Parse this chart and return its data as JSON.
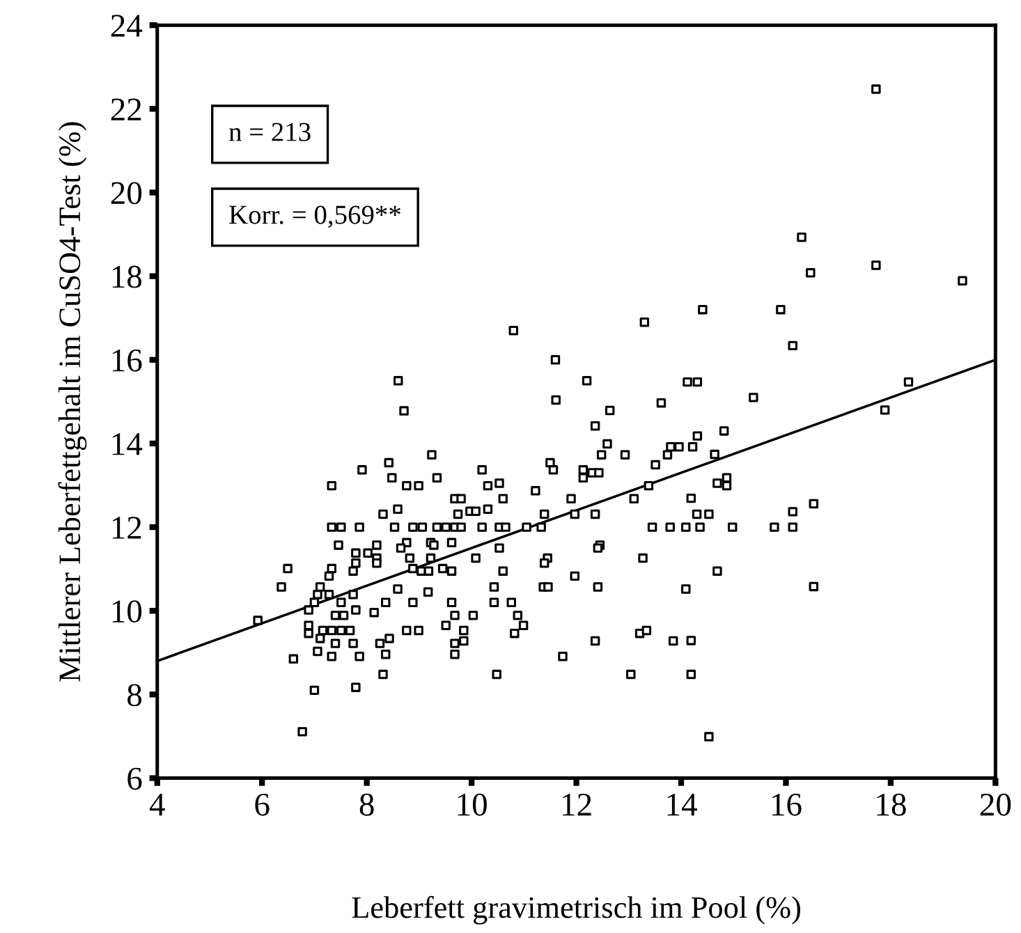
{
  "chart_data": {
    "type": "scatter",
    "xlabel": "Leberfett gravimetrisch im Pool (%)",
    "ylabel": "Mittlerer Leberfettgehalt im CuSO4-Test (%)",
    "annotations": [
      "n = 213",
      "Korr. = 0,569**"
    ],
    "xlim": [
      4,
      20
    ],
    "xticks": [
      4,
      6,
      8,
      10,
      12,
      14,
      16,
      18,
      20
    ],
    "ylim": [
      6,
      24
    ],
    "yticks": [
      6,
      8,
      10,
      12,
      14,
      16,
      18,
      20,
      22,
      24
    ],
    "grid": false,
    "legend": false,
    "series": [
      {
        "color": "#000000",
        "marker": "square",
        "x": [
          8.71,
          8.42,
          8.48,
          7.91,
          7.33,
          8.76,
          8.99,
          9.24,
          8.31,
          8.59,
          7.33,
          7.51,
          7.86,
          8.53,
          8.88,
          9.06,
          7.46,
          8.19,
          8.76,
          8.65,
          9.22,
          7.79,
          8.02,
          7.79,
          8.19,
          8.19,
          8.82,
          6.49,
          7.33,
          7.74,
          8.88,
          9.04,
          9.18,
          7.28,
          6.37,
          7.11,
          8.59,
          9.17,
          7.06,
          7.28,
          7.74,
          7.0,
          7.51,
          8.36,
          8.88,
          6.89,
          7.79,
          8.14,
          7.4,
          7.56,
          5.92,
          6.89,
          6.89,
          7.16,
          7.33,
          7.51,
          7.68,
          8.76,
          8.99,
          7.11,
          8.43,
          7.4,
          7.74,
          8.25,
          6.6,
          7.06,
          7.33,
          7.86,
          8.36,
          8.31,
          7.0,
          7.79,
          6.77,
          11.61,
          12.64,
          13.62,
          12.36,
          12.59,
          12.48,
          12.93,
          13.74,
          13.8,
          13.96,
          13.51,
          11.5,
          11.56,
          12.13,
          12.13,
          12.3,
          12.43,
          9.34,
          10.2,
          10.31,
          10.53,
          11.22,
          9.68,
          9.8,
          10.6,
          11.9,
          13.1,
          13.38,
          9.74,
          9.97,
          10.08,
          10.31,
          11.39,
          11.97,
          12.36,
          9.34,
          9.51,
          9.68,
          9.8,
          10.2,
          10.53,
          10.65,
          11.05,
          11.33,
          13.45,
          13.79,
          9.28,
          9.62,
          10.53,
          12.45,
          12.41,
          9.22,
          10.08,
          11.45,
          11.39,
          13.27,
          9.45,
          9.62,
          10.6,
          10.43,
          11.37,
          11.46,
          11.97,
          12.41,
          9.62,
          10.43,
          10.76,
          9.68,
          10.03,
          10.88,
          9.51,
          9.85,
          10.99,
          10.82,
          9.68,
          9.85,
          9.68,
          12.36,
          13.21,
          13.34,
          13.85,
          11.74,
          10.48,
          13.04,
          17.72,
          16.3,
          16.47,
          17.72,
          19.37,
          14.41,
          15.9,
          16.13,
          14.12,
          14.31,
          18.34,
          15.38,
          17.89,
          14.82,
          14.31,
          14.22,
          14.64,
          14.69,
          14.87,
          14.87,
          14.19,
          14.3,
          14.53,
          14.09,
          14.36,
          14.98,
          15.78,
          16.13,
          16.13,
          16.53,
          14.69,
          14.09,
          16.53,
          14.19,
          14.19,
          14.53,
          8.6,
          10.8,
          11.6,
          13.3,
          12.2
        ],
        "values": [
          14.78,
          13.54,
          13.18,
          13.37,
          12.99,
          12.99,
          12.99,
          13.73,
          12.31,
          12.43,
          12.0,
          12.0,
          12.0,
          12.0,
          12.0,
          12.0,
          11.57,
          11.57,
          11.63,
          11.5,
          11.63,
          11.38,
          11.38,
          11.14,
          11.26,
          11.14,
          11.26,
          11.01,
          11.01,
          10.95,
          11.01,
          10.95,
          10.95,
          10.83,
          10.57,
          10.57,
          10.52,
          10.45,
          10.39,
          10.39,
          10.39,
          10.2,
          10.2,
          10.2,
          10.2,
          10.02,
          10.02,
          9.96,
          9.89,
          9.89,
          9.77,
          9.65,
          9.46,
          9.53,
          9.53,
          9.53,
          9.53,
          9.53,
          9.53,
          9.34,
          9.34,
          9.22,
          9.22,
          9.22,
          8.85,
          9.03,
          8.91,
          8.91,
          8.96,
          8.48,
          8.1,
          8.17,
          7.11,
          15.04,
          14.79,
          14.97,
          14.42,
          13.99,
          13.73,
          13.73,
          13.73,
          13.92,
          13.92,
          13.49,
          13.54,
          13.37,
          13.37,
          13.18,
          13.3,
          13.3,
          13.18,
          13.37,
          12.99,
          13.05,
          12.87,
          12.68,
          12.68,
          12.68,
          12.68,
          12.68,
          12.99,
          12.31,
          12.38,
          12.38,
          12.43,
          12.31,
          12.31,
          12.31,
          12.0,
          12.0,
          12.0,
          12.0,
          12.0,
          12.0,
          12.0,
          12.0,
          12.0,
          12.0,
          12.0,
          11.57,
          11.63,
          11.5,
          11.57,
          11.5,
          11.26,
          11.26,
          11.26,
          11.14,
          11.26,
          11.01,
          10.95,
          10.95,
          10.57,
          10.57,
          10.57,
          10.83,
          10.57,
          10.2,
          10.2,
          10.2,
          9.89,
          9.89,
          9.89,
          9.65,
          9.53,
          9.65,
          9.46,
          9.22,
          9.28,
          8.96,
          9.28,
          9.46,
          9.53,
          9.28,
          8.91,
          8.48,
          8.48,
          22.47,
          18.93,
          18.08,
          18.26,
          17.89,
          17.2,
          17.2,
          16.34,
          15.47,
          15.47,
          15.47,
          15.1,
          14.8,
          14.3,
          14.18,
          13.92,
          13.74,
          13.05,
          13.18,
          12.99,
          12.69,
          12.31,
          12.31,
          12.0,
          12.0,
          12.0,
          12.0,
          12.0,
          12.37,
          12.56,
          10.95,
          10.52,
          10.58,
          9.29,
          8.48,
          6.99,
          15.5,
          16.7,
          16.0,
          16.9,
          15.5
        ]
      },
      {
        "type": "line",
        "color": "#000000",
        "x": [
          4,
          20
        ],
        "values": [
          8.8,
          16.0
        ]
      }
    ]
  }
}
